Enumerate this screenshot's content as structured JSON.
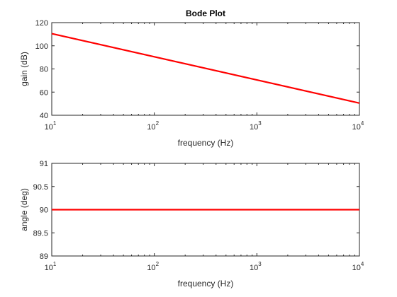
{
  "chart_data": [
    {
      "type": "line",
      "title": "Bode Plot",
      "xlabel": "frequency (Hz)",
      "ylabel": "gain (dB)",
      "xscale": "log",
      "xlim": [
        10,
        10000
      ],
      "ylim": [
        40,
        120
      ],
      "grid": false,
      "x_ticks": [
        {
          "value": 10,
          "base": "10",
          "exp": "1"
        },
        {
          "value": 100,
          "base": "10",
          "exp": "2"
        },
        {
          "value": 1000,
          "base": "10",
          "exp": "3"
        },
        {
          "value": 10000,
          "base": "10",
          "exp": "4"
        }
      ],
      "y_ticks": [
        "40",
        "60",
        "80",
        "100",
        "120"
      ],
      "series": [
        {
          "x": [
            10,
            10000
          ],
          "y": [
            110.5,
            50.5
          ],
          "color": "#ff0000"
        }
      ]
    },
    {
      "type": "line",
      "title": "",
      "xlabel": "frequency (Hz)",
      "ylabel": "angle (deg)",
      "xscale": "log",
      "xlim": [
        10,
        10000
      ],
      "ylim": [
        89,
        91
      ],
      "grid": false,
      "x_ticks": [
        {
          "value": 10,
          "base": "10",
          "exp": "1"
        },
        {
          "value": 100,
          "base": "10",
          "exp": "2"
        },
        {
          "value": 1000,
          "base": "10",
          "exp": "3"
        },
        {
          "value": 10000,
          "base": "10",
          "exp": "4"
        }
      ],
      "y_ticks": [
        "89",
        "89.5",
        "90",
        "90.5",
        "91"
      ],
      "series": [
        {
          "x": [
            10,
            10000
          ],
          "y": [
            90,
            90
          ],
          "color": "#ff0000"
        }
      ]
    }
  ]
}
